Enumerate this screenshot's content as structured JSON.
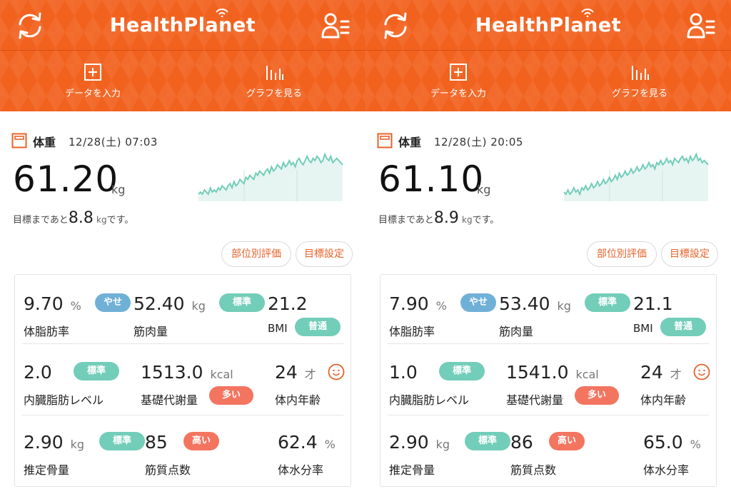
{
  "app": {
    "title": "HealthPlanet"
  },
  "nav": {
    "input_label": "データを入力",
    "graph_label": "グラフを見る"
  },
  "colors": {
    "header": "#f2621f",
    "accent": "#e8622a",
    "teal": "#72cdb9",
    "blue": "#6fb0d6",
    "salmon": "#f37560"
  },
  "icons": {
    "refresh": "refresh-icon",
    "user_menu": "user-menu-icon",
    "input": "plus-box-icon",
    "graph": "bar-chart-icon",
    "weight": "scale-icon",
    "face": "smiley-face-icon"
  },
  "buttons": {
    "eval": "部位別評価",
    "goal": "目標設定"
  },
  "panels": [
    {
      "weight": {
        "title": "体重",
        "date": "12/28(土) 07:03",
        "value": "61.20",
        "unit": "kg",
        "goal_prefix": "目標まであと",
        "goal_value": "8.8",
        "goal_unit": "kg",
        "goal_suffix": "です。",
        "trend": [
          2,
          3,
          2,
          4,
          3,
          2,
          5,
          3,
          4,
          3,
          5,
          4,
          6,
          5,
          4,
          6,
          7,
          5,
          8,
          6,
          7,
          9,
          8,
          7,
          10,
          9,
          11,
          10,
          9,
          12,
          11,
          13,
          12,
          11,
          13,
          14,
          12,
          15,
          13,
          14,
          16,
          15,
          14,
          17,
          15,
          16,
          18,
          16,
          17,
          15,
          18,
          19,
          17,
          16,
          18,
          20,
          18,
          17,
          19,
          18,
          20,
          19,
          17,
          18,
          21,
          19,
          18,
          20,
          17,
          18,
          19,
          18,
          17,
          16
        ]
      },
      "metrics": {
        "body_fat": {
          "value": "9.70",
          "unit": "%",
          "label": "体脂肪率",
          "badge": "やせ"
        },
        "muscle": {
          "value": "52.40",
          "unit": "kg",
          "label": "筋肉量",
          "badge": "標準"
        },
        "bmi": {
          "value": "21.2",
          "label": "BMI",
          "badge": "普通"
        },
        "visceral": {
          "value": "2.0",
          "label": "内臓脂肪レベル",
          "badge": "標準"
        },
        "bmr": {
          "value": "1513.0",
          "unit": "kcal",
          "label": "基礎代謝量",
          "badge": "多い"
        },
        "body_age": {
          "value": "24",
          "unit": "才",
          "label": "体内年齢"
        },
        "bone": {
          "value": "2.90",
          "unit": "kg",
          "label": "推定骨量",
          "badge": "標準"
        },
        "muscle_quality": {
          "value": "85",
          "label": "筋質点数",
          "badge": "高い"
        },
        "water": {
          "value": "62.4",
          "unit": "%",
          "label": "体水分率"
        }
      }
    },
    {
      "weight": {
        "title": "体重",
        "date": "12/28(土) 20:05",
        "value": "61.10",
        "unit": "kg",
        "goal_prefix": "目標まであと",
        "goal_value": "8.9",
        "goal_unit": "kg",
        "goal_suffix": "です。",
        "trend": [
          3,
          2,
          4,
          2,
          3,
          5,
          3,
          4,
          2,
          5,
          4,
          6,
          4,
          5,
          7,
          5,
          6,
          8,
          6,
          7,
          9,
          7,
          8,
          10,
          8,
          9,
          11,
          9,
          12,
          10,
          11,
          13,
          11,
          12,
          14,
          12,
          13,
          15,
          13,
          14,
          16,
          14,
          15,
          17,
          15,
          16,
          14,
          17,
          16,
          18,
          16,
          17,
          19,
          17,
          18,
          16,
          19,
          18,
          17,
          19,
          20,
          18,
          19,
          17,
          20,
          18,
          19,
          21,
          18,
          19,
          17,
          18,
          17,
          16
        ]
      },
      "metrics": {
        "body_fat": {
          "value": "7.90",
          "unit": "%",
          "label": "体脂肪率",
          "badge": "やせ"
        },
        "muscle": {
          "value": "53.40",
          "unit": "kg",
          "label": "筋肉量",
          "badge": "標準"
        },
        "bmi": {
          "value": "21.1",
          "label": "BMI",
          "badge": "普通"
        },
        "visceral": {
          "value": "1.0",
          "label": "内臓脂肪レベル",
          "badge": "標準"
        },
        "bmr": {
          "value": "1541.0",
          "unit": "kcal",
          "label": "基礎代謝量",
          "badge": "多い"
        },
        "body_age": {
          "value": "24",
          "unit": "才",
          "label": "体内年齢"
        },
        "bone": {
          "value": "2.90",
          "unit": "kg",
          "label": "推定骨量",
          "badge": "標準"
        },
        "muscle_quality": {
          "value": "86",
          "label": "筋質点数",
          "badge": "高い"
        },
        "water": {
          "value": "65.0",
          "unit": "%",
          "label": "体水分率"
        }
      }
    }
  ]
}
